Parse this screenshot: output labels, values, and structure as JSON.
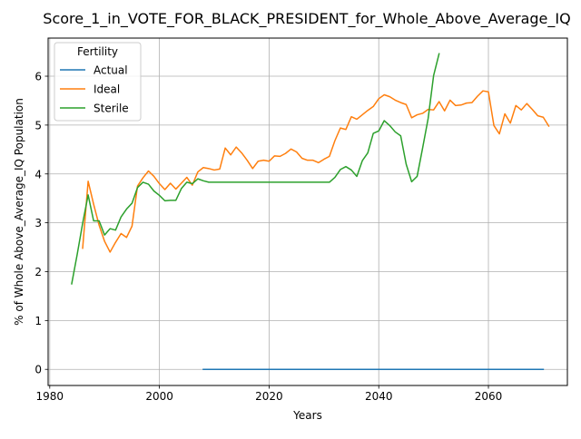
{
  "chart_data": {
    "type": "line",
    "title": "Score_1_in_VOTE_FOR_BLACK_PRESIDENT_for_Whole_Above_Average_IQ",
    "xlabel": "Years",
    "ylabel": "% of Whole Above_Average_IQ Population",
    "xlim": [
      1979.7,
      2074.4
    ],
    "ylim": [
      -0.33,
      6.78
    ],
    "xticks": [
      1980,
      2000,
      2020,
      2040,
      2060
    ],
    "yticks": [
      0,
      1,
      2,
      3,
      4,
      5,
      6
    ],
    "grid": true,
    "legend": {
      "title": "Fertility",
      "position": "top-left"
    },
    "series": [
      {
        "name": "Actual",
        "color": "#1f77b4",
        "points": [
          [
            2008,
            0.0
          ],
          [
            2070,
            0.0
          ]
        ]
      },
      {
        "name": "Ideal",
        "color": "#ff7f0e",
        "points": [
          [
            1986,
            2.48
          ],
          [
            1987,
            3.85
          ],
          [
            1988,
            3.38
          ],
          [
            1989,
            2.95
          ],
          [
            1990,
            2.62
          ],
          [
            1991,
            2.4
          ],
          [
            1992,
            2.6
          ],
          [
            1993,
            2.78
          ],
          [
            1994,
            2.7
          ],
          [
            1995,
            2.93
          ],
          [
            1996,
            3.75
          ],
          [
            1997,
            3.92
          ],
          [
            1998,
            4.06
          ],
          [
            1999,
            3.95
          ],
          [
            2000,
            3.8
          ],
          [
            2001,
            3.68
          ],
          [
            2002,
            3.81
          ],
          [
            2003,
            3.69
          ],
          [
            2004,
            3.81
          ],
          [
            2005,
            3.93
          ],
          [
            2006,
            3.77
          ],
          [
            2007,
            4.04
          ],
          [
            2008,
            4.13
          ],
          [
            2009,
            4.11
          ],
          [
            2010,
            4.08
          ],
          [
            2011,
            4.1
          ],
          [
            2012,
            4.53
          ],
          [
            2013,
            4.39
          ],
          [
            2014,
            4.55
          ],
          [
            2015,
            4.43
          ],
          [
            2016,
            4.28
          ],
          [
            2017,
            4.11
          ],
          [
            2018,
            4.26
          ],
          [
            2019,
            4.28
          ],
          [
            2020,
            4.26
          ],
          [
            2021,
            4.37
          ],
          [
            2022,
            4.36
          ],
          [
            2023,
            4.42
          ],
          [
            2024,
            4.51
          ],
          [
            2025,
            4.45
          ],
          [
            2026,
            4.32
          ],
          [
            2027,
            4.28
          ],
          [
            2028,
            4.28
          ],
          [
            2029,
            4.23
          ],
          [
            2030,
            4.3
          ],
          [
            2031,
            4.36
          ],
          [
            2032,
            4.68
          ],
          [
            2033,
            4.94
          ],
          [
            2034,
            4.91
          ],
          [
            2035,
            5.17
          ],
          [
            2036,
            5.12
          ],
          [
            2037,
            5.21
          ],
          [
            2038,
            5.3
          ],
          [
            2039,
            5.38
          ],
          [
            2040,
            5.54
          ],
          [
            2041,
            5.62
          ],
          [
            2042,
            5.58
          ],
          [
            2043,
            5.51
          ],
          [
            2044,
            5.46
          ],
          [
            2045,
            5.42
          ],
          [
            2046,
            5.15
          ],
          [
            2047,
            5.21
          ],
          [
            2048,
            5.24
          ],
          [
            2049,
            5.32
          ],
          [
            2050,
            5.31
          ],
          [
            2051,
            5.48
          ],
          [
            2052,
            5.29
          ],
          [
            2053,
            5.51
          ],
          [
            2054,
            5.4
          ],
          [
            2055,
            5.41
          ],
          [
            2056,
            5.45
          ],
          [
            2057,
            5.46
          ],
          [
            2058,
            5.59
          ],
          [
            2059,
            5.7
          ],
          [
            2060,
            5.68
          ],
          [
            2061,
            4.99
          ],
          [
            2062,
            4.82
          ],
          [
            2063,
            5.23
          ],
          [
            2064,
            5.04
          ],
          [
            2065,
            5.4
          ],
          [
            2066,
            5.31
          ],
          [
            2067,
            5.44
          ],
          [
            2068,
            5.32
          ],
          [
            2069,
            5.19
          ],
          [
            2070,
            5.16
          ],
          [
            2071,
            4.98
          ]
        ]
      },
      {
        "name": "Sterile",
        "color": "#2ca02c",
        "points": [
          [
            1984,
            1.75
          ],
          [
            1985,
            2.35
          ],
          [
            1986,
            2.99
          ],
          [
            1987,
            3.57
          ],
          [
            1988,
            3.04
          ],
          [
            1989,
            3.04
          ],
          [
            1990,
            2.75
          ],
          [
            1991,
            2.88
          ],
          [
            1992,
            2.85
          ],
          [
            1993,
            3.12
          ],
          [
            1994,
            3.28
          ],
          [
            1995,
            3.4
          ],
          [
            1996,
            3.72
          ],
          [
            1997,
            3.83
          ],
          [
            1998,
            3.79
          ],
          [
            1999,
            3.65
          ],
          [
            2000,
            3.56
          ],
          [
            2001,
            3.45
          ],
          [
            2002,
            3.46
          ],
          [
            2003,
            3.46
          ],
          [
            2004,
            3.7
          ],
          [
            2005,
            3.83
          ],
          [
            2006,
            3.8
          ],
          [
            2007,
            3.9
          ],
          [
            2008,
            3.86
          ],
          [
            2009,
            3.83
          ],
          [
            2010,
            3.83
          ],
          [
            2011,
            3.83
          ],
          [
            2012,
            3.83
          ],
          [
            2013,
            3.83
          ],
          [
            2014,
            3.83
          ],
          [
            2015,
            3.83
          ],
          [
            2016,
            3.83
          ],
          [
            2017,
            3.83
          ],
          [
            2018,
            3.83
          ],
          [
            2019,
            3.83
          ],
          [
            2020,
            3.83
          ],
          [
            2021,
            3.83
          ],
          [
            2022,
            3.83
          ],
          [
            2023,
            3.83
          ],
          [
            2024,
            3.83
          ],
          [
            2025,
            3.83
          ],
          [
            2026,
            3.83
          ],
          [
            2027,
            3.83
          ],
          [
            2028,
            3.83
          ],
          [
            2029,
            3.83
          ],
          [
            2030,
            3.83
          ],
          [
            2031,
            3.83
          ],
          [
            2032,
            3.93
          ],
          [
            2033,
            4.09
          ],
          [
            2034,
            4.15
          ],
          [
            2035,
            4.08
          ],
          [
            2036,
            3.95
          ],
          [
            2037,
            4.27
          ],
          [
            2038,
            4.43
          ],
          [
            2039,
            4.83
          ],
          [
            2040,
            4.88
          ],
          [
            2041,
            5.09
          ],
          [
            2042,
            4.99
          ],
          [
            2043,
            4.86
          ],
          [
            2044,
            4.78
          ],
          [
            2045,
            4.2
          ],
          [
            2046,
            3.84
          ],
          [
            2047,
            3.95
          ],
          [
            2048,
            4.53
          ],
          [
            2049,
            5.13
          ],
          [
            2050,
            6.01
          ],
          [
            2051,
            6.46
          ]
        ]
      }
    ]
  }
}
